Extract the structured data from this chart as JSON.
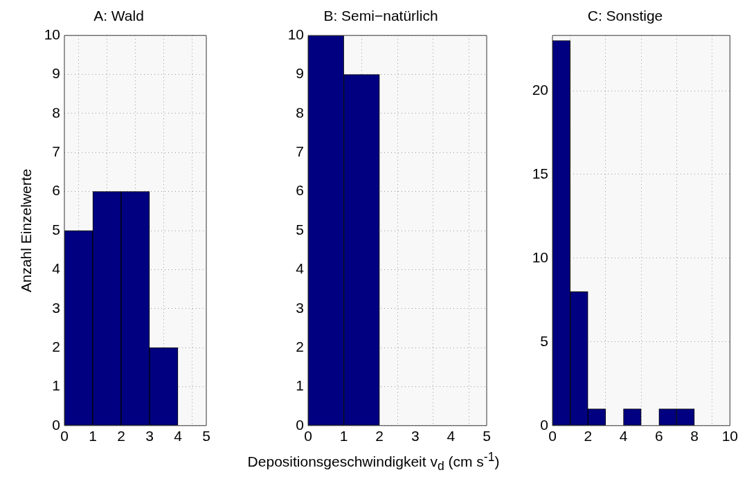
{
  "chart_data": [
    {
      "type": "histogram",
      "title": "A: Wald",
      "ylabel": "Anzahl Einzelwerte",
      "bins": [
        0,
        1,
        2,
        3,
        4
      ],
      "values": [
        5,
        6,
        6,
        2
      ],
      "color": "#000080",
      "xlim": [
        0,
        5
      ],
      "xticks": [
        0,
        1,
        2,
        3,
        4,
        5
      ],
      "ylim": [
        0,
        10
      ],
      "yticks": [
        0,
        1,
        2,
        3,
        4,
        5,
        6,
        7,
        8,
        9,
        10
      ],
      "grid": true
    },
    {
      "type": "histogram",
      "title": "B: Semi−natürlich",
      "xlabel": "Depositionsgeschwindigkeit v$_{d}$  (cm s$^{-1}$)",
      "bins": [
        0,
        1,
        2
      ],
      "values": [
        10,
        9
      ],
      "color": "#000080",
      "xlim": [
        0,
        5
      ],
      "xticks": [
        0,
        1,
        2,
        3,
        4,
        5
      ],
      "ylim": [
        0,
        10
      ],
      "yticks": [
        0,
        1,
        2,
        3,
        4,
        5,
        6,
        7,
        8,
        9,
        10
      ],
      "grid": true
    },
    {
      "type": "histogram",
      "title": "C: Sonstige",
      "bins": [
        0,
        1,
        2,
        3,
        4,
        5,
        6,
        7,
        8
      ],
      "values": [
        23,
        8,
        1,
        0,
        1,
        0,
        1,
        1
      ],
      "color": "#000080",
      "xlim": [
        0,
        10
      ],
      "xticks": [
        0,
        2,
        4,
        6,
        8,
        10
      ],
      "ylim": [
        0,
        23.3
      ],
      "yticks": [
        0,
        5,
        10,
        15,
        20
      ],
      "grid": true
    }
  ]
}
